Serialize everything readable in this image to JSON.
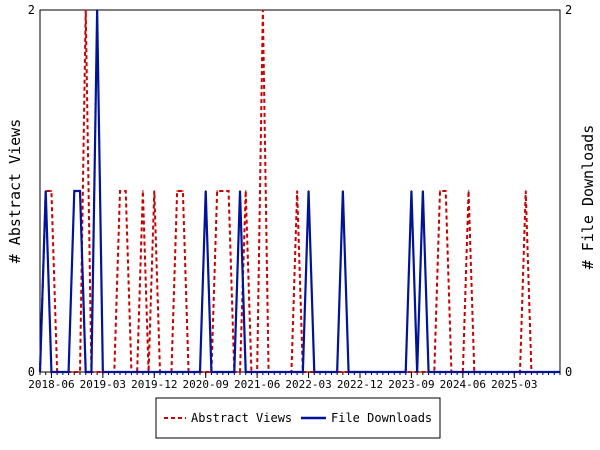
{
  "chart_data": {
    "type": "line",
    "y_left_label": "# Abstract Views",
    "y_right_label": "# File Downloads",
    "y_left_ticks": [
      "0",
      "2"
    ],
    "y_right_ticks": [
      "0",
      "2"
    ],
    "ylim": [
      0,
      2
    ],
    "x_start": "2018-04",
    "x_end": "2025-11",
    "x_tick_labels": [
      "2018-06",
      "2019-03",
      "2019-12",
      "2020-09",
      "2021-06",
      "2022-03",
      "2022-12",
      "2023-09",
      "2024-06",
      "2025-03"
    ],
    "series": [
      {
        "name": "Abstract Views",
        "color": "#cc0000",
        "style": "dashed",
        "points": [
          [
            "2018-04",
            0
          ],
          [
            "2018-05",
            1
          ],
          [
            "2018-06",
            1
          ],
          [
            "2018-07",
            0
          ],
          [
            "2018-12",
            2
          ],
          [
            "2019-01",
            0
          ],
          [
            "2019-05",
            0
          ],
          [
            "2019-06",
            1
          ],
          [
            "2019-07",
            1
          ],
          [
            "2019-08",
            0
          ],
          [
            "2019-10",
            1
          ],
          [
            "2019-11",
            0
          ],
          [
            "2019-12",
            1
          ],
          [
            "2020-01",
            0
          ],
          [
            "2020-04",
            1
          ],
          [
            "2020-05",
            1
          ],
          [
            "2020-06",
            0
          ],
          [
            "2020-11",
            1
          ],
          [
            "2020-12",
            1
          ],
          [
            "2021-01",
            1
          ],
          [
            "2021-02",
            0
          ],
          [
            "2021-04",
            1
          ],
          [
            "2021-05",
            0
          ],
          [
            "2021-07",
            2
          ],
          [
            "2021-08",
            0
          ],
          [
            "2022-01",
            1
          ],
          [
            "2022-02",
            0
          ],
          [
            "2024-02",
            1
          ],
          [
            "2024-03",
            1
          ],
          [
            "2024-04",
            0
          ],
          [
            "2024-07",
            1
          ],
          [
            "2024-08",
            0
          ],
          [
            "2025-05",
            1
          ],
          [
            "2025-06",
            0
          ]
        ]
      },
      {
        "name": "File Downloads",
        "color": "#00139a",
        "style": "solid",
        "points": [
          [
            "2018-04",
            0
          ],
          [
            "2018-05",
            1
          ],
          [
            "2018-06",
            0
          ],
          [
            "2018-09",
            0
          ],
          [
            "2018-10",
            1
          ],
          [
            "2018-11",
            1
          ],
          [
            "2018-12",
            0
          ],
          [
            "2019-02",
            2
          ],
          [
            "2019-03",
            0
          ],
          [
            "2020-09",
            1
          ],
          [
            "2020-10",
            0
          ],
          [
            "2021-03",
            1
          ],
          [
            "2021-04",
            0
          ],
          [
            "2022-03",
            1
          ],
          [
            "2022-04",
            0
          ],
          [
            "2022-09",
            1
          ],
          [
            "2022-10",
            0
          ],
          [
            "2023-09",
            1
          ],
          [
            "2023-10",
            0
          ],
          [
            "2023-11",
            1
          ],
          [
            "2023-12",
            0
          ]
        ]
      }
    ],
    "legend_position": "bottom-center"
  }
}
